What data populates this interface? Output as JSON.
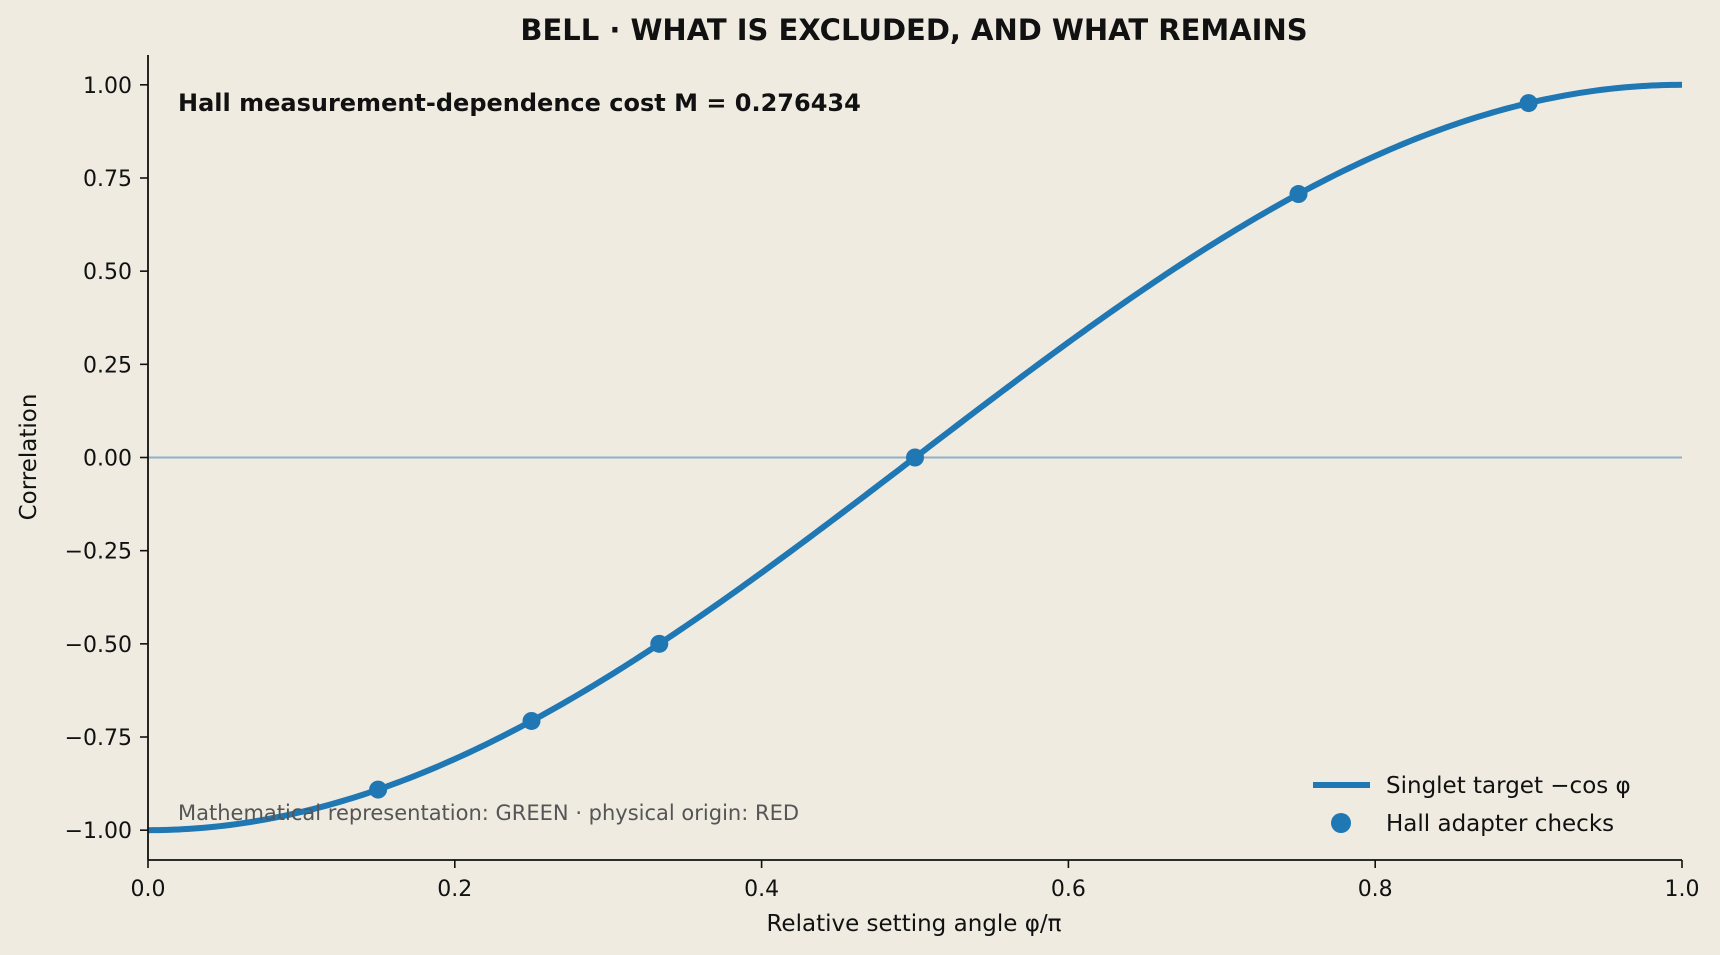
{
  "chart_data": {
    "type": "line",
    "title": "BELL · WHAT IS EXCLUDED, AND WHAT REMAINS",
    "xlabel": "Relative setting angle  φ/π",
    "ylabel": "Correlation",
    "xlim": [
      0.0,
      1.0
    ],
    "ylim": [
      -1.08,
      1.08
    ],
    "x_ticks": [
      0.0,
      0.2,
      0.4,
      0.6,
      0.8,
      1.0
    ],
    "x_tick_labels": [
      "0.0",
      "0.2",
      "0.4",
      "0.6",
      "0.8",
      "1.0"
    ],
    "y_ticks": [
      1.0,
      0.75,
      0.5,
      0.25,
      0.0,
      -0.25,
      -0.5,
      -0.75,
      -1.0
    ],
    "y_tick_labels": [
      "1.00",
      "0.75",
      "0.50",
      "0.25",
      "0.00",
      "−0.25",
      "−0.50",
      "−0.75",
      "−1.00"
    ],
    "grid": false,
    "reference_line_y": 0.0,
    "legend_position": "lower-right",
    "colors": {
      "series": "#1f77b4",
      "zero_line": "#8fb0c8",
      "background": "#efebe1"
    },
    "series": [
      {
        "name": "Singlet target  −cos φ",
        "kind": "line",
        "function": "-cos(pi*x)",
        "sample_x_range": [
          0.0,
          1.0
        ]
      },
      {
        "name": "Hall adapter checks",
        "kind": "scatter",
        "x": [
          0.15,
          0.25,
          0.3333,
          0.5,
          0.75,
          0.9
        ],
        "y": [
          -0.891,
          -0.707,
          -0.5,
          0.0,
          0.707,
          0.951
        ]
      }
    ],
    "annotations": [
      {
        "text": "Hall measurement-dependence cost  M = 0.276434",
        "style": "bold",
        "position": "top-left"
      },
      {
        "text": "Mathematical representation: GREEN · physical origin: RED",
        "style": "note",
        "position": "bottom-left"
      }
    ]
  }
}
